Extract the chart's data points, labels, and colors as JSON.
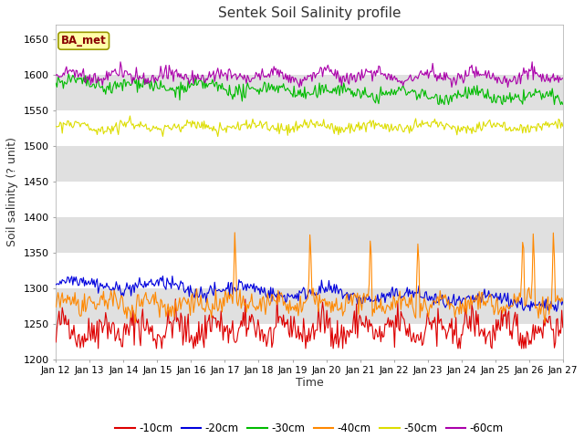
{
  "title": "Sentek Soil Salinity profile",
  "xlabel": "Time",
  "ylabel": "Soil salinity (? unit)",
  "annotation": "BA_met",
  "ylim": [
    1200,
    1670
  ],
  "yticks": [
    1200,
    1250,
    1300,
    1350,
    1400,
    1450,
    1500,
    1550,
    1600,
    1650
  ],
  "colors": {
    "-10cm": "#dd0000",
    "-20cm": "#0000dd",
    "-30cm": "#00bb00",
    "-40cm": "#ff8800",
    "-50cm": "#dddd00",
    "-60cm": "#aa00aa"
  },
  "legend_labels": [
    "-10cm",
    "-20cm",
    "-30cm",
    "-40cm",
    "-50cm",
    "-60cm"
  ],
  "x_tick_labels": [
    "Jan 12",
    "Jan 13",
    "Jan 14",
    "Jan 15",
    "Jan 16",
    "Jan 17",
    "Jan 18",
    "Jan 19",
    "Jan 20",
    "Jan 21",
    "Jan 22",
    "Jan 23",
    "Jan 24",
    "Jan 25",
    "Jan 26",
    "Jan 27"
  ],
  "n_points": 480,
  "seed": 42,
  "white_band": "#ffffff",
  "gray_band": "#e0e0e0",
  "fig_bg": "#ffffff"
}
